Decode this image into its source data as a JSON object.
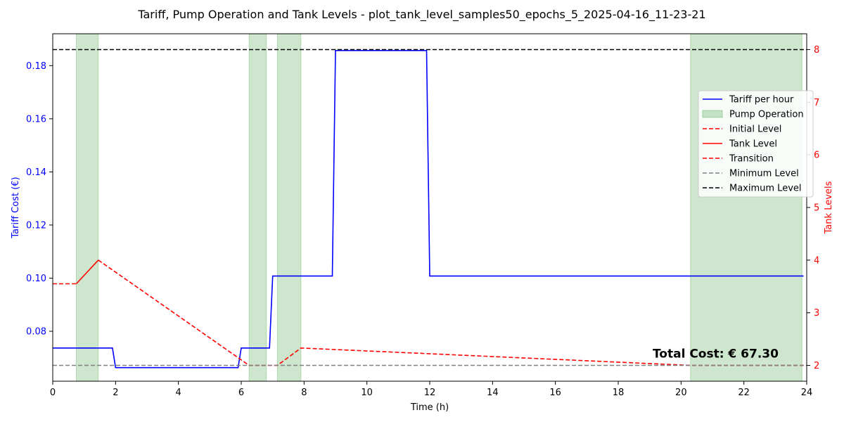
{
  "chart_data": {
    "type": "line",
    "title": "Tariff, Pump Operation and Tank Levels - plot_tank_level_samples50_epochs_5_2025-04-16_11-23-21",
    "xlabel": "Time (h)",
    "ylabel_left": "Tariff Cost (€)",
    "ylabel_right": "Tank Levels",
    "xlim": [
      0,
      24
    ],
    "ylim_left": [
      0.0612,
      0.192
    ],
    "ylim_right": [
      1.7,
      8.3
    ],
    "x_ticks": [
      "0",
      "2",
      "4",
      "6",
      "8",
      "10",
      "12",
      "14",
      "16",
      "18",
      "20",
      "22",
      "24"
    ],
    "y_left_ticks": [
      "0.08",
      "0.10",
      "0.12",
      "0.14",
      "0.16",
      "0.18"
    ],
    "y_right_ticks": [
      "2",
      "3",
      "4",
      "5",
      "6",
      "7",
      "8"
    ],
    "grid": false,
    "legend_position": "center-right",
    "colors": {
      "tariff": "#0000ff",
      "tank": "#ff0000",
      "pump": "#4ca64c",
      "min_level": "#808080",
      "max_level": "#000000",
      "left_axis": "#0000ff",
      "right_axis": "#ff0000"
    },
    "series": [
      {
        "name": "Tariff per hour",
        "axis": "left",
        "style": "solid",
        "x": [
          0,
          1.9,
          2.0,
          5.9,
          6.0,
          6.9,
          7.0,
          8.9,
          9.0,
          11.9,
          12.0,
          23.9
        ],
        "y": [
          0.0737,
          0.0737,
          0.0663,
          0.0663,
          0.0737,
          0.0737,
          0.1008,
          0.1008,
          0.1857,
          0.1857,
          0.1008,
          0.1008
        ]
      },
      {
        "name": "Initial Level",
        "axis": "right",
        "style": "dashed",
        "x": [
          0,
          0.75
        ],
        "y": [
          3.55,
          3.55
        ]
      },
      {
        "name": "Tank Level",
        "axis": "right",
        "style": "solid",
        "x": [
          0.75,
          1.45
        ],
        "y": [
          3.55,
          4.0
        ]
      },
      {
        "name": "Transition",
        "axis": "right",
        "style": "dashed",
        "x": [
          1.45,
          6.25,
          7.15,
          7.9,
          20.3,
          23.9
        ],
        "y": [
          4.0,
          2.0,
          2.0,
          2.33,
          2.0,
          2.0
        ]
      },
      {
        "name": "Minimum Level",
        "axis": "right",
        "style": "dashed",
        "value": 2
      },
      {
        "name": "Maximum Level",
        "axis": "right",
        "style": "dashed",
        "value": 8
      }
    ],
    "pump_operation": {
      "name": "Pump Operation",
      "intervals": [
        [
          0.75,
          1.45
        ],
        [
          6.25,
          6.8
        ],
        [
          7.15,
          7.9
        ],
        [
          20.3,
          23.85
        ]
      ]
    },
    "annotations": [
      {
        "text": "Total Cost: € 67.30",
        "x": 21.1,
        "y_right": 2.15
      }
    ],
    "legend": [
      {
        "label": "Tariff per hour",
        "kind": "line",
        "color": "#0000ff",
        "dash": ""
      },
      {
        "label": "Pump Operation",
        "kind": "patch",
        "color": "#4ca64c",
        "dash": ""
      },
      {
        "label": "Initial Level",
        "kind": "line",
        "color": "#ff0000",
        "dash": "6,3"
      },
      {
        "label": "Tank Level",
        "kind": "line",
        "color": "#ff0000",
        "dash": ""
      },
      {
        "label": "Transition",
        "kind": "line",
        "color": "#ff0000",
        "dash": "6,3"
      },
      {
        "label": "Minimum Level",
        "kind": "line",
        "color": "#808080",
        "dash": "6,3"
      },
      {
        "label": "Maximum Level",
        "kind": "line",
        "color": "#000000",
        "dash": "6,3"
      }
    ]
  }
}
